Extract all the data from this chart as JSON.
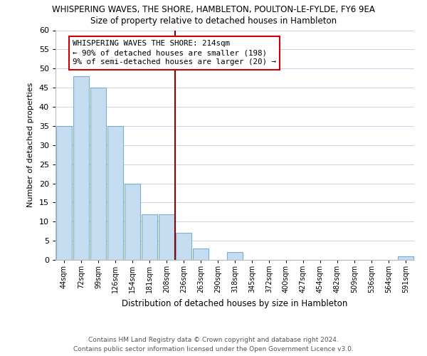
{
  "title": "WHISPERING WAVES, THE SHORE, HAMBLETON, POULTON-LE-FYLDE, FY6 9EA",
  "subtitle": "Size of property relative to detached houses in Hambleton",
  "xlabel": "Distribution of detached houses by size in Hambleton",
  "ylabel": "Number of detached properties",
  "bar_labels": [
    "44sqm",
    "72sqm",
    "99sqm",
    "126sqm",
    "154sqm",
    "181sqm",
    "208sqm",
    "236sqm",
    "263sqm",
    "290sqm",
    "318sqm",
    "345sqm",
    "372sqm",
    "400sqm",
    "427sqm",
    "454sqm",
    "482sqm",
    "509sqm",
    "536sqm",
    "564sqm",
    "591sqm"
  ],
  "bar_values": [
    35,
    48,
    45,
    35,
    20,
    12,
    12,
    7,
    3,
    0,
    2,
    0,
    0,
    0,
    0,
    0,
    0,
    0,
    0,
    0,
    1
  ],
  "bar_color": "#c6dcf0",
  "bar_edge_color": "#7aafd4",
  "vline_color": "#8b0000",
  "annotation_text": "WHISPERING WAVES THE SHORE: 214sqm\n← 90% of detached houses are smaller (198)\n9% of semi-detached houses are larger (20) →",
  "annotation_box_color": "#ffffff",
  "annotation_box_edge": "#cc0000",
  "ylim": [
    0,
    60
  ],
  "yticks": [
    0,
    5,
    10,
    15,
    20,
    25,
    30,
    35,
    40,
    45,
    50,
    55,
    60
  ],
  "footer_line1": "Contains HM Land Registry data © Crown copyright and database right 2024.",
  "footer_line2": "Contains public sector information licensed under the Open Government Licence v3.0.",
  "background_color": "#ffffff",
  "grid_color": "#c8d4e8"
}
